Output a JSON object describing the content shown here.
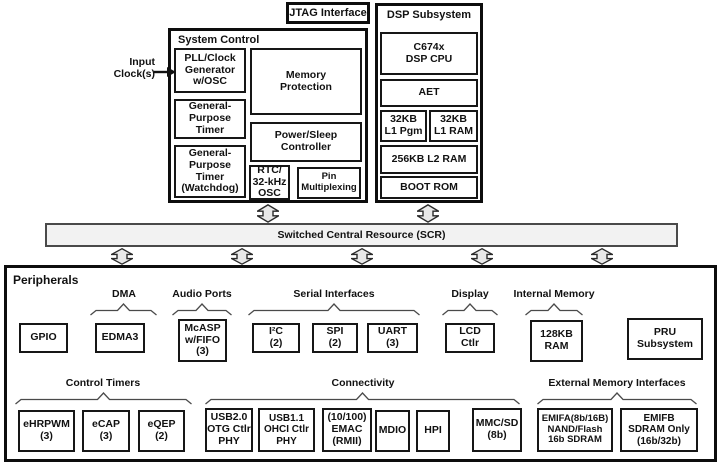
{
  "jtag": {
    "label": "JTAG Interface"
  },
  "input": {
    "label": "Input\nClock(s)"
  },
  "system_control": {
    "title": "System Control",
    "boxes": {
      "pll": "PLL/Clock\nGenerator\nw/OSC",
      "gp_timer": "General-\nPurpose\nTimer",
      "gp_timer_watchdog": "General-\nPurpose\nTimer\n(Watchdog)",
      "memory_protection": "Memory\nProtection",
      "power_sleep": "Power/Sleep\nController",
      "rtc": "RTC/\n32-kHz\nOSC",
      "pin_multiplexing": "Pin\nMultiplexing"
    }
  },
  "dsp_subsystem": {
    "title": "DSP Subsystem",
    "boxes": {
      "cpu": "C674x\nDSP CPU",
      "aet": "AET",
      "l1_pgm": "32KB\nL1 Pgm",
      "l1_ram": "32KB\nL1 RAM",
      "l2_ram": "256KB L2 RAM",
      "boot_rom": "BOOT ROM"
    }
  },
  "scr": {
    "label": "Switched Central Resource (SCR)"
  },
  "peripherals": {
    "title": "Peripherals",
    "groups": {
      "dma": "DMA",
      "audio_ports": "Audio Ports",
      "serial_interfaces": "Serial Interfaces",
      "display": "Display",
      "internal_memory": "Internal Memory",
      "control_timers": "Control Timers",
      "connectivity": "Connectivity",
      "external_memory": "External Memory Interfaces"
    },
    "boxes": {
      "gpio": "GPIO",
      "edma3": "EDMA3",
      "mcasp": "McASP\nw/FIFO\n(3)",
      "i2c": "I²C\n(2)",
      "spi": "SPI\n(2)",
      "uart": "UART\n(3)",
      "lcd": "LCD\nCtlr",
      "ram_128kb": "128KB\nRAM",
      "pru": "PRU\nSubsystem",
      "ehrpwm": "eHRPWM\n(3)",
      "ecap": "eCAP\n(3)",
      "eqep": "eQEP\n(2)",
      "usb20": "USB2.0\nOTG Ctlr\nPHY",
      "usb11": "USB1.1\nOHCI Ctlr\nPHY",
      "emac": "(10/100)\nEMAC\n(RMII)",
      "mdio": "MDIO",
      "hpi": "HPI",
      "mmcsd": "MMC/SD\n(8b)",
      "emifa": "EMIFA(8b/16B)\nNAND/Flash\n16b SDRAM",
      "emifb": "EMIFB\nSDRAM Only\n(16b/32b)"
    }
  },
  "icons": {
    "bidirectional_arrow": "vertical-double-headed-arrow",
    "input_arrow": "right-arrow"
  },
  "colors": {
    "background": "#ffffff",
    "box_fill": "#ffffff",
    "border": "#111111",
    "scr_fill": "#f2f2f2",
    "arrow_fill": "#e9e9e9"
  }
}
